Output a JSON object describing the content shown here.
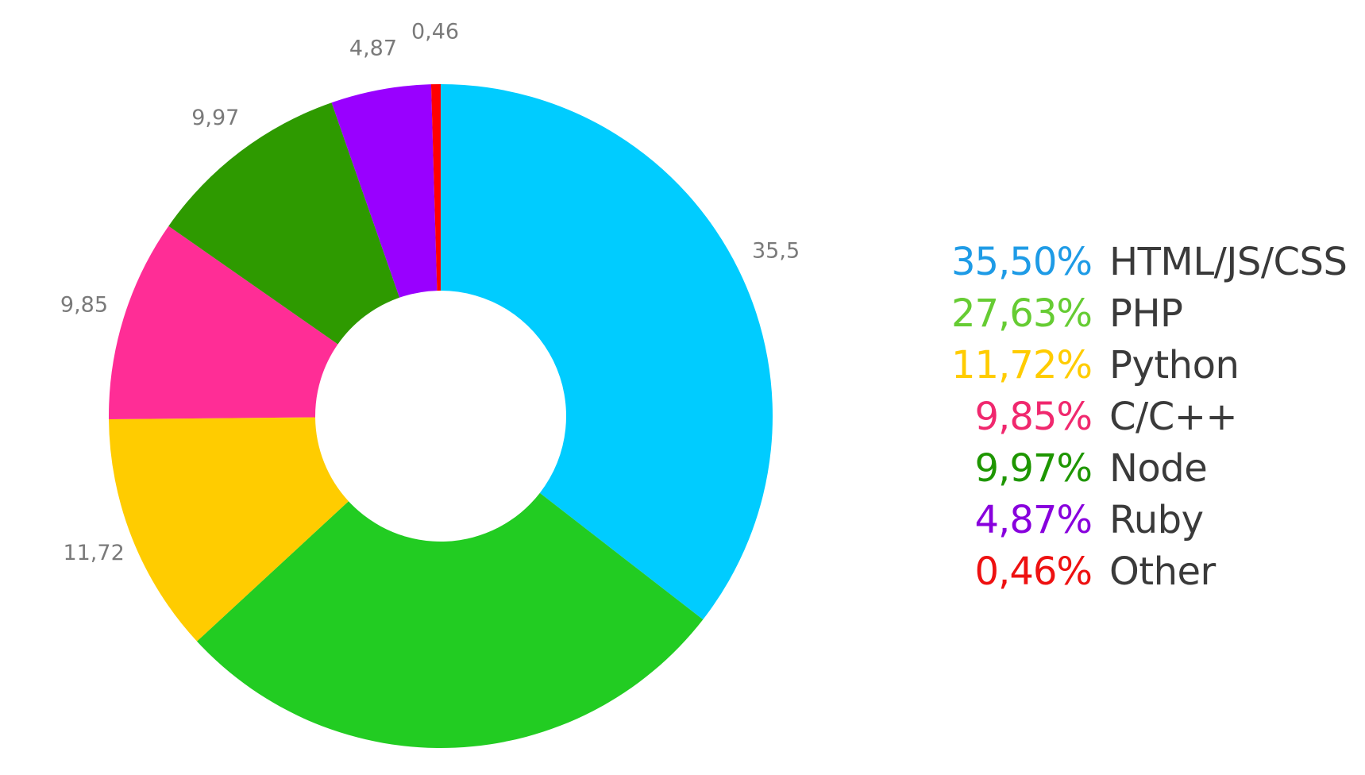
{
  "chart_data": {
    "type": "pie",
    "donut": true,
    "slices": [
      {
        "name": "HTML/JS/CSS",
        "value": 35.5,
        "slice_label": "35,5",
        "legend_value": "35,50%",
        "color": "#00CCFF",
        "legend_color": "#1E9BE6"
      },
      {
        "name": "PHP",
        "value": 27.63,
        "slice_label": "",
        "legend_value": "27,63%",
        "color": "#22CC22",
        "legend_color": "#66CC33"
      },
      {
        "name": "Python",
        "value": 11.72,
        "slice_label": "11,72",
        "legend_value": "11,72%",
        "color": "#FFCC00",
        "legend_color": "#FFCC00"
      },
      {
        "name": "C/C++",
        "value": 9.85,
        "slice_label": "9,85",
        "legend_value": "9,85%",
        "color": "#FF2D96",
        "legend_color": "#F0286E"
      },
      {
        "name": "Node",
        "value": 9.97,
        "slice_label": "9,97",
        "legend_value": "9,97%",
        "color": "#2E9A00",
        "legend_color": "#1E9600"
      },
      {
        "name": "Ruby",
        "value": 4.87,
        "slice_label": "4,87",
        "legend_value": "4,87%",
        "color": "#9900FF",
        "legend_color": "#8800DD"
      },
      {
        "name": "Other",
        "value": 0.46,
        "slice_label": "0,46",
        "legend_value": "0,46%",
        "color": "#FF0000",
        "legend_color": "#EE1111"
      }
    ]
  }
}
